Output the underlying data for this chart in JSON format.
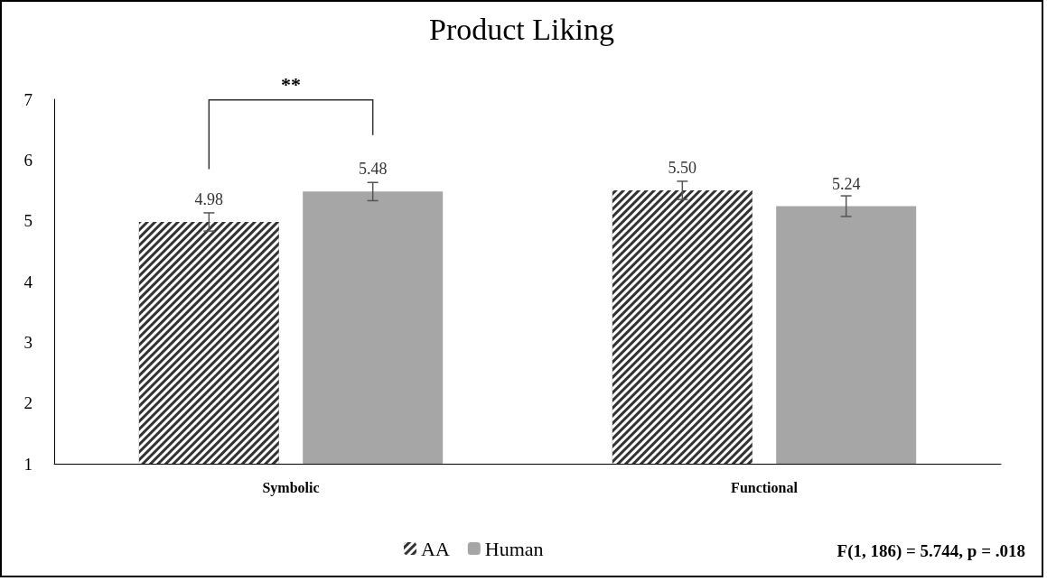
{
  "chart_data": {
    "type": "bar",
    "title": "Product Liking",
    "categories": [
      "Symbolic",
      "Functional"
    ],
    "series": [
      {
        "name": "AA",
        "color": "#333333",
        "values": [
          4.98,
          5.5
        ],
        "value_labels": [
          "4.98",
          "5.50"
        ],
        "errors": [
          0.15,
          0.15
        ]
      },
      {
        "name": "Human",
        "color": "#a6a6a6",
        "values": [
          5.48,
          5.24
        ],
        "value_labels": [
          "5.48",
          "5.24"
        ],
        "errors": [
          0.15,
          0.17
        ]
      }
    ],
    "ylim": [
      1,
      7
    ],
    "yticks": [
      1,
      2,
      3,
      4,
      5,
      6,
      7
    ],
    "grid": false,
    "legend": "bottom",
    "annotations": [
      "**",
      "F(1, 186) = 5.744, p = .018"
    ]
  }
}
